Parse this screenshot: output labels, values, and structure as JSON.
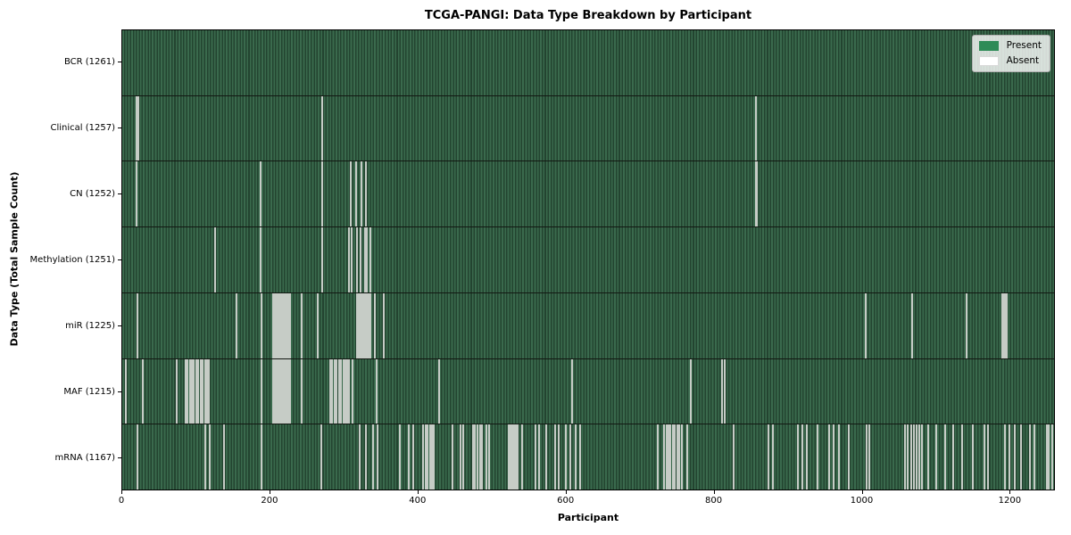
{
  "title": "TCGA-PANGI: Data Type Breakdown by Participant",
  "xlabel": "Participant",
  "ylabel": "Data Type (Total Sample Count)",
  "legend": {
    "present_label": "Present",
    "absent_label": "Absent"
  },
  "colors": {
    "present": "#2e8b57",
    "absent": "#ffffff",
    "row_texture_light": "#3a6a4d",
    "row_texture_dark": "#234430",
    "absent_stripe": "#c6ccc6",
    "axis": "#000000"
  },
  "chart_data": {
    "type": "heatmap",
    "title": "TCGA-PANGI: Data Type Breakdown by Participant",
    "xlabel": "Participant",
    "ylabel": "Data Type (Total Sample Count)",
    "legend_entries": [
      "Present",
      "Absent"
    ],
    "legend_position": "upper right",
    "x_range": [
      0,
      1261
    ],
    "x_ticks": [
      0,
      200,
      400,
      600,
      800,
      1000,
      1200
    ],
    "cell_values": "binary presence (1=Present green, 0=Absent white) per participant per data type",
    "rows": [
      {
        "label": "BCR (1261)",
        "data_type": "BCR",
        "total_samples": 1261,
        "absent_count": 0,
        "absent_participants": []
      },
      {
        "label": "Clinical (1257)",
        "data_type": "Clinical",
        "total_samples": 1257,
        "absent_count": 4,
        "absent_participants": [
          18,
          20,
          269,
          856
        ]
      },
      {
        "label": "CN (1252)",
        "data_type": "CN",
        "total_samples": 1252,
        "absent_count": 9,
        "absent_participants": [
          18,
          186,
          269,
          308,
          315,
          322,
          329,
          856,
          858
        ]
      },
      {
        "label": "Methylation (1251)",
        "data_type": "Methylation",
        "total_samples": 1251,
        "absent_count": 10,
        "absent_participants": [
          125,
          186,
          269,
          305,
          309,
          317,
          321,
          327,
          330,
          334
        ]
      },
      {
        "label": "miR (1225)",
        "data_type": "miR",
        "total_samples": 1225,
        "absent_count": 36,
        "absent_participants": [
          19,
          153,
          187,
          203,
          205,
          207,
          209,
          211,
          213,
          215,
          217,
          219,
          221,
          223,
          226,
          241,
          263,
          316,
          318,
          320,
          322,
          324,
          326,
          328,
          330,
          332,
          334,
          341,
          353,
          1005,
          1068,
          1141,
          1190,
          1192,
          1194,
          1196
        ]
      },
      {
        "label": "MAF (1215)",
        "data_type": "MAF",
        "total_samples": 1215,
        "absent_count": 46,
        "absent_participants": [
          4,
          27,
          72,
          84,
          87,
          90,
          93,
          96,
          99,
          102,
          105,
          108,
          111,
          114,
          116,
          187,
          203,
          205,
          207,
          209,
          211,
          213,
          215,
          217,
          219,
          221,
          223,
          226,
          241,
          280,
          283,
          286,
          289,
          292,
          295,
          298,
          301,
          303,
          305,
          310,
          343,
          427,
          607,
          768,
          810,
          814
        ]
      },
      {
        "label": "mRNA (1167)",
        "data_type": "mRNA",
        "total_samples": 1167,
        "absent_count": 94,
        "absent_participants": [
          19,
          111,
          117,
          136,
          187,
          268,
          320,
          328,
          338,
          344,
          374,
          386,
          392,
          406,
          409,
          412,
          415,
          418,
          420,
          446,
          456,
          460,
          473,
          476,
          479,
          483,
          486,
          491,
          495,
          522,
          524,
          526,
          528,
          530,
          532,
          534,
          540,
          558,
          563,
          573,
          585,
          590,
          599,
          605,
          612,
          619,
          724,
          732,
          735,
          738,
          741,
          744,
          747,
          750,
          753,
          756,
          763,
          826,
          873,
          879,
          913,
          919,
          925,
          940,
          955,
          961,
          969,
          982,
          1006,
          1010,
          1058,
          1062,
          1066,
          1070,
          1074,
          1078,
          1081,
          1090,
          1100,
          1112,
          1123,
          1135,
          1150,
          1166,
          1171,
          1193,
          1199,
          1207,
          1215,
          1227,
          1233,
          1250,
          1253,
          1257
        ]
      }
    ]
  }
}
